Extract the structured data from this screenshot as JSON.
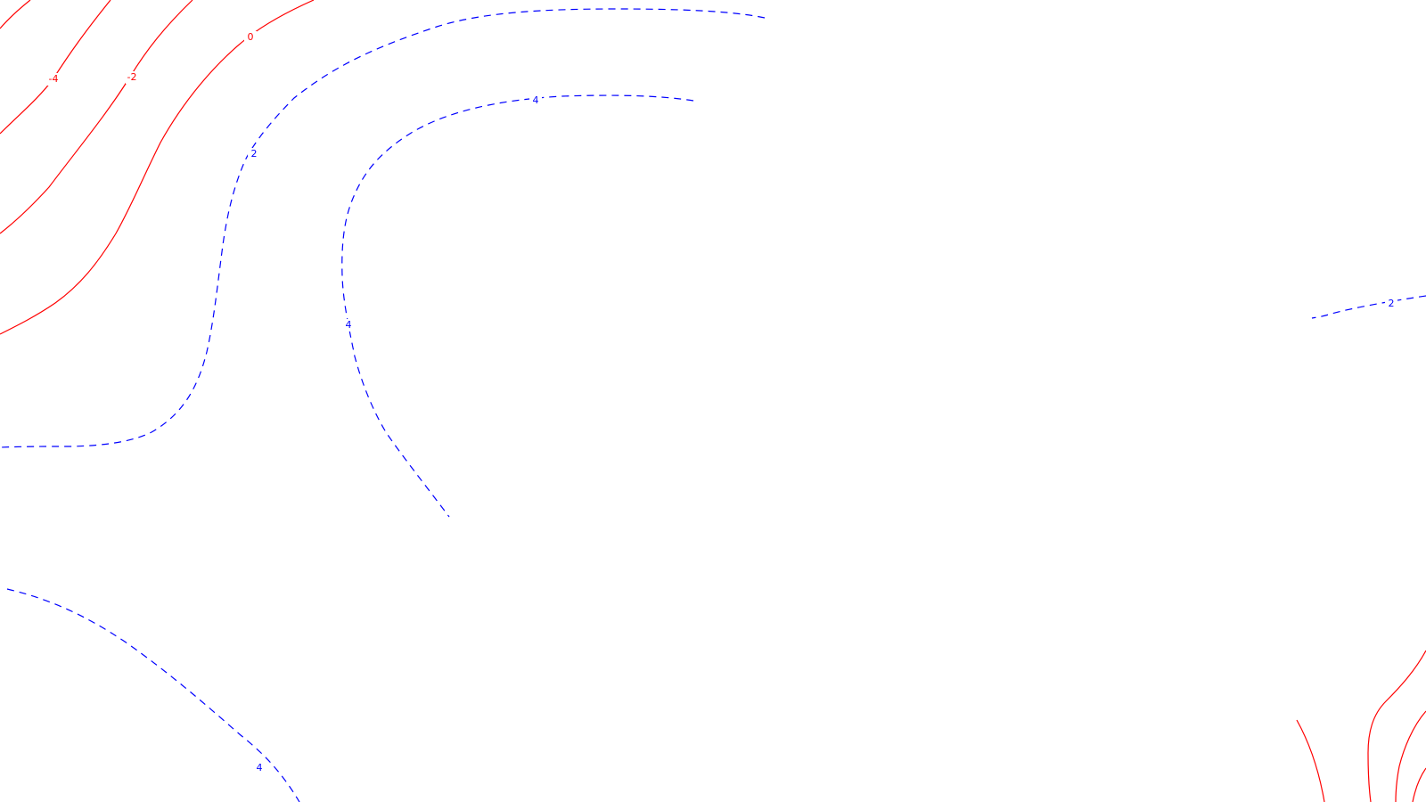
{
  "chart_data": {
    "type": "contour",
    "title": "",
    "xlabel": "",
    "ylabel": "",
    "grid": false,
    "legend": "none",
    "levels": [
      -4,
      -2,
      0,
      2,
      4
    ],
    "colors": {
      "negative_and_zero": "#ff0000",
      "positive": "#0000ff"
    },
    "line_styles": {
      "negative_and_zero": "solid",
      "positive": "dashed"
    },
    "labels": [
      {
        "text": "-4",
        "level": -4
      },
      {
        "text": "-2",
        "level": -2
      },
      {
        "text": "0",
        "level": 0
      },
      {
        "text": "2",
        "level": 2
      },
      {
        "text": "4",
        "level": 4
      },
      {
        "text": "4",
        "level": 4
      },
      {
        "text": "4",
        "level": 4
      },
      {
        "text": "2",
        "level": 2
      }
    ]
  }
}
